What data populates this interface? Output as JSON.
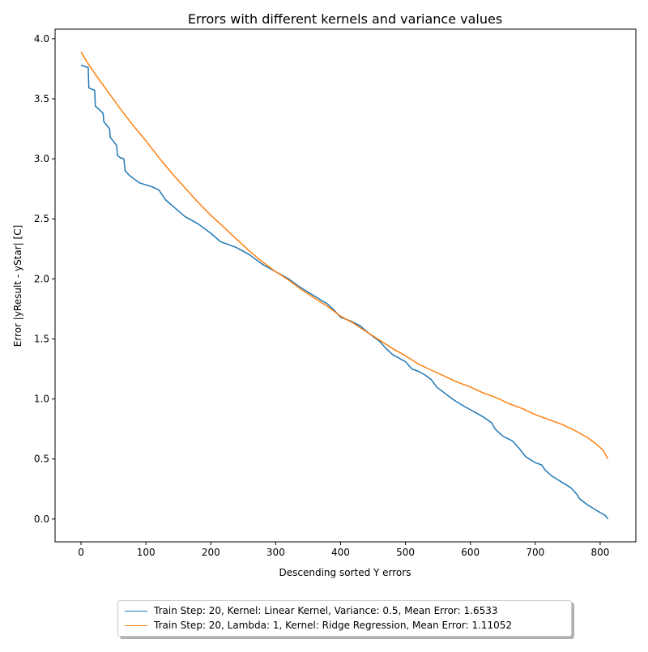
{
  "chart_data": {
    "type": "line",
    "title": "Errors with different kernels and variance values",
    "xlabel": "Descending sorted Y errors",
    "ylabel": "Error |yResult - yStar| [C]",
    "xlim": [
      -40,
      855
    ],
    "ylim": [
      -0.19,
      4.08
    ],
    "x_ticks": [
      0,
      100,
      200,
      300,
      400,
      500,
      600,
      700,
      800
    ],
    "y_ticks": [
      0.0,
      0.5,
      1.0,
      1.5,
      2.0,
      2.5,
      3.0,
      3.5,
      4.0
    ],
    "grid": false,
    "legend_position": "below",
    "series": [
      {
        "name": "Train Step: 20, Kernel: Linear Kernel, Variance: 0.5, Mean Error: 1.6533",
        "color": "#1f77b4",
        "points": [
          [
            0,
            3.78
          ],
          [
            11,
            3.76
          ],
          [
            12,
            3.59
          ],
          [
            21,
            3.57
          ],
          [
            22,
            3.44
          ],
          [
            34,
            3.38
          ],
          [
            35,
            3.31
          ],
          [
            44,
            3.25
          ],
          [
            45,
            3.18
          ],
          [
            55,
            3.11
          ],
          [
            56,
            3.03
          ],
          [
            60,
            3.01
          ],
          [
            66,
            3.0
          ],
          [
            68,
            2.9
          ],
          [
            75,
            2.86
          ],
          [
            90,
            2.8
          ],
          [
            108,
            2.77
          ],
          [
            120,
            2.74
          ],
          [
            130,
            2.66
          ],
          [
            145,
            2.59
          ],
          [
            160,
            2.52
          ],
          [
            180,
            2.46
          ],
          [
            200,
            2.38
          ],
          [
            215,
            2.31
          ],
          [
            240,
            2.26
          ],
          [
            260,
            2.2
          ],
          [
            280,
            2.12
          ],
          [
            300,
            2.06
          ],
          [
            320,
            2.0
          ],
          [
            335,
            1.94
          ],
          [
            350,
            1.89
          ],
          [
            365,
            1.84
          ],
          [
            380,
            1.79
          ],
          [
            390,
            1.74
          ],
          [
            400,
            1.68
          ],
          [
            415,
            1.65
          ],
          [
            430,
            1.61
          ],
          [
            445,
            1.54
          ],
          [
            460,
            1.48
          ],
          [
            470,
            1.42
          ],
          [
            480,
            1.37
          ],
          [
            500,
            1.31
          ],
          [
            510,
            1.25
          ],
          [
            520,
            1.23
          ],
          [
            530,
            1.2
          ],
          [
            540,
            1.16
          ],
          [
            548,
            1.1
          ],
          [
            560,
            1.05
          ],
          [
            575,
            0.99
          ],
          [
            590,
            0.94
          ],
          [
            600,
            0.91
          ],
          [
            620,
            0.85
          ],
          [
            633,
            0.8
          ],
          [
            638,
            0.75
          ],
          [
            650,
            0.69
          ],
          [
            665,
            0.65
          ],
          [
            675,
            0.59
          ],
          [
            685,
            0.52
          ],
          [
            700,
            0.47
          ],
          [
            710,
            0.45
          ],
          [
            715,
            0.41
          ],
          [
            725,
            0.36
          ],
          [
            740,
            0.31
          ],
          [
            755,
            0.26
          ],
          [
            765,
            0.2
          ],
          [
            768,
            0.17
          ],
          [
            780,
            0.12
          ],
          [
            795,
            0.07
          ],
          [
            808,
            0.03
          ],
          [
            812,
            0.0
          ]
        ]
      },
      {
        "name": "Train Step: 20, Lambda: 1, Kernel: Ridge Regression, Mean Error: 1.11052",
        "color": "#ff7f0e",
        "points": [
          [
            0,
            3.89
          ],
          [
            10,
            3.8
          ],
          [
            25,
            3.68
          ],
          [
            40,
            3.57
          ],
          [
            60,
            3.42
          ],
          [
            80,
            3.28
          ],
          [
            100,
            3.15
          ],
          [
            120,
            3.01
          ],
          [
            140,
            2.88
          ],
          [
            160,
            2.76
          ],
          [
            180,
            2.64
          ],
          [
            200,
            2.53
          ],
          [
            220,
            2.43
          ],
          [
            240,
            2.33
          ],
          [
            260,
            2.23
          ],
          [
            280,
            2.14
          ],
          [
            300,
            2.06
          ],
          [
            320,
            1.99
          ],
          [
            340,
            1.91
          ],
          [
            360,
            1.84
          ],
          [
            380,
            1.77
          ],
          [
            400,
            1.69
          ],
          [
            420,
            1.63
          ],
          [
            440,
            1.56
          ],
          [
            460,
            1.49
          ],
          [
            480,
            1.42
          ],
          [
            500,
            1.36
          ],
          [
            520,
            1.29
          ],
          [
            540,
            1.24
          ],
          [
            560,
            1.19
          ],
          [
            580,
            1.14
          ],
          [
            600,
            1.1
          ],
          [
            620,
            1.05
          ],
          [
            640,
            1.01
          ],
          [
            660,
            0.96
          ],
          [
            680,
            0.92
          ],
          [
            700,
            0.87
          ],
          [
            720,
            0.83
          ],
          [
            740,
            0.79
          ],
          [
            760,
            0.74
          ],
          [
            780,
            0.68
          ],
          [
            795,
            0.62
          ],
          [
            805,
            0.57
          ],
          [
            812,
            0.5
          ]
        ]
      }
    ]
  }
}
